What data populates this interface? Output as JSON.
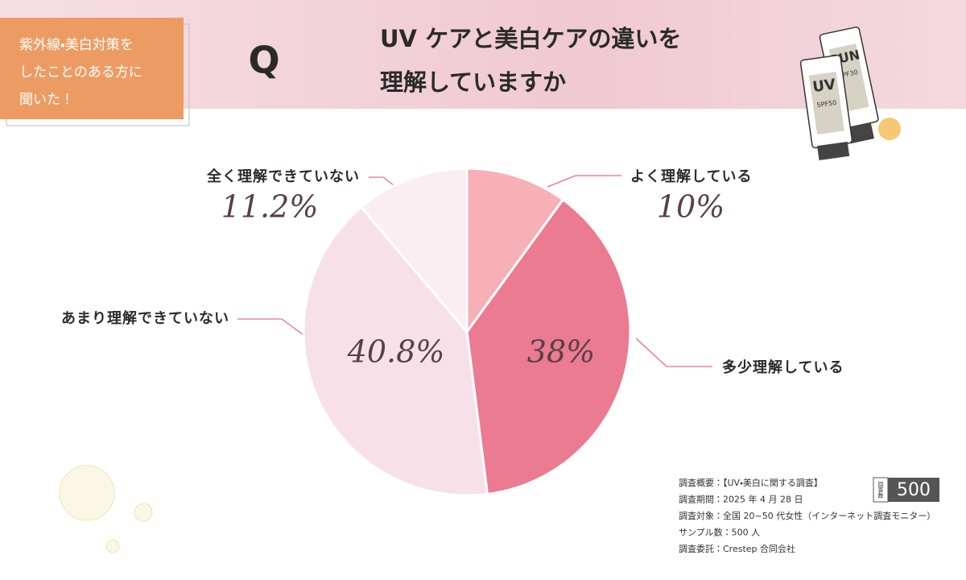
{
  "badge": [
    "紫外線・美白対策を",
    "したことのある方に",
    "聞いた！"
  ],
  "q_mark": "Q",
  "illustration": {
    "tube1_big": "UV",
    "tube1_small": "SPF50",
    "tube2_big": "SUN",
    "tube2_small": "SPF30"
  },
  "survey": [
    "調査概要：【UV・美白に関する調査】",
    "調査期間：2025 年 4 月 28 日",
    "調査対象：全国 20~50 代女性（インターネット調査モニター）",
    "サンプル数：500 人",
    "調査委託：Crestep 合同会社"
  ],
  "respondents": {
    "label": "回答数",
    "count": "500"
  },
  "chart_data": {
    "type": "pie",
    "title": [
      "UV ケアと美白ケアの違いを",
      "理解していますか"
    ],
    "categories": [
      "よく理解している",
      "多少理解している",
      "あまり理解できていない",
      "全く理解できていない"
    ],
    "values": [
      10,
      38,
      40.8,
      11.2
    ],
    "value_labels": [
      "10%",
      "38%",
      "40.8%",
      "11.2%"
    ],
    "colors": [
      "#f6b0b6",
      "#ea7b91",
      "#f7e0e7",
      "#fbeef2"
    ]
  }
}
